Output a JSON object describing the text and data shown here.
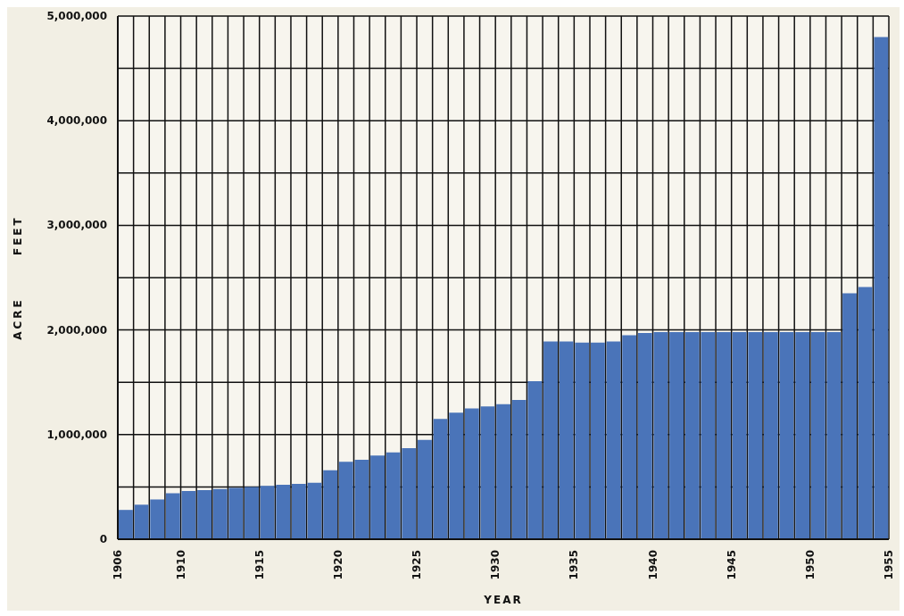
{
  "chart_data": {
    "type": "histogram",
    "xlabel": "YEAR",
    "ylabel": "ACRE FEET",
    "bins": [
      1906,
      1907,
      1908,
      1909,
      1910,
      1911,
      1912,
      1913,
      1914,
      1915,
      1916,
      1917,
      1918,
      1919,
      1920,
      1921,
      1922,
      1923,
      1924,
      1925,
      1926,
      1927,
      1928,
      1929,
      1930,
      1931,
      1932,
      1933,
      1934,
      1935,
      1936,
      1937,
      1938,
      1939,
      1940,
      1941,
      1942,
      1943,
      1944,
      1945,
      1946,
      1947,
      1948,
      1949,
      1950,
      1951,
      1952,
      1953,
      1954,
      1955
    ],
    "series": [
      {
        "color": "#4a74b9",
        "values": [
          280000,
          330000,
          380000,
          440000,
          460000,
          470000,
          480000,
          490000,
          500000,
          510000,
          520000,
          530000,
          540000,
          660000,
          740000,
          760000,
          800000,
          830000,
          870000,
          950000,
          1150000,
          1210000,
          1250000,
          1270000,
          1290000,
          1330000,
          1510000,
          1890000,
          1890000,
          1880000,
          1880000,
          1890000,
          1950000,
          1970000,
          1980000,
          1980000,
          1980000,
          1980000,
          1980000,
          1980000,
          1980000,
          1980000,
          1980000,
          1980000,
          1980000,
          1980000,
          2350000,
          2410000,
          4800000
        ]
      }
    ],
    "xlim": [
      1906,
      1955
    ],
    "xticks": [
      1906,
      {
        "value": 1907,
        "label": null
      },
      {
        "value": 1908,
        "label": null
      },
      {
        "value": 1909,
        "label": null
      },
      1910,
      {
        "value": 1911,
        "label": null
      },
      {
        "value": 1912,
        "label": null
      },
      {
        "value": 1913,
        "label": null
      },
      {
        "value": 1914,
        "label": null
      },
      1915,
      {
        "value": 1916,
        "label": null
      },
      {
        "value": 1917,
        "label": null
      },
      {
        "value": 1918,
        "label": null
      },
      {
        "value": 1919,
        "label": null
      },
      1920,
      {
        "value": 1921,
        "label": null
      },
      {
        "value": 1922,
        "label": null
      },
      {
        "value": 1923,
        "label": null
      },
      {
        "value": 1924,
        "label": null
      },
      1925,
      {
        "value": 1926,
        "label": null
      },
      {
        "value": 1927,
        "label": null
      },
      {
        "value": 1928,
        "label": null
      },
      {
        "value": 1929,
        "label": null
      },
      1930,
      {
        "value": 1931,
        "label": null
      },
      {
        "value": 1932,
        "label": null
      },
      {
        "value": 1933,
        "label": null
      },
      {
        "value": 1934,
        "label": null
      },
      1935,
      {
        "value": 1936,
        "label": null
      },
      {
        "value": 1937,
        "label": null
      },
      {
        "value": 1938,
        "label": null
      },
      {
        "value": 1939,
        "label": null
      },
      1940,
      {
        "value": 1941,
        "label": null
      },
      {
        "value": 1942,
        "label": null
      },
      {
        "value": 1943,
        "label": null
      },
      {
        "value": 1944,
        "label": null
      },
      1945,
      {
        "value": 1946,
        "label": null
      },
      {
        "value": 1947,
        "label": null
      },
      {
        "value": 1948,
        "label": null
      },
      {
        "value": 1949,
        "label": null
      },
      1950,
      {
        "value": 1951,
        "label": null
      },
      {
        "value": 1952,
        "label": null
      },
      {
        "value": 1953,
        "label": null
      },
      {
        "value": 1954,
        "label": null
      },
      1955
    ],
    "ylim": [
      0,
      5000000
    ],
    "yticks": [
      0,
      {
        "value": 500000,
        "label": null
      },
      {
        "value": 1000000,
        "label": "1,000,000"
      },
      {
        "value": 1500000,
        "label": null
      },
      {
        "value": 2000000,
        "label": "2,000,000"
      },
      {
        "value": 2500000,
        "label": null
      },
      {
        "value": 3000000,
        "label": "3,000,000"
      },
      {
        "value": 3500000,
        "label": null
      },
      {
        "value": 4000000,
        "label": "4,000,000"
      },
      {
        "value": 4500000,
        "label": null
      },
      {
        "value": 5000000,
        "label": "5,000,000"
      }
    ],
    "grid": true,
    "legend": false
  }
}
